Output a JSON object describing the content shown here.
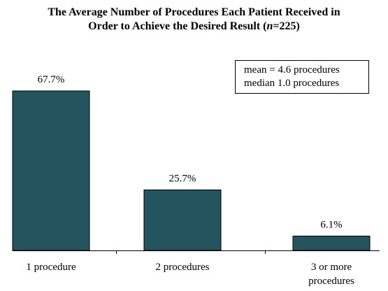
{
  "title_parts": [
    {
      "text": "The Average Number of Procedures Each Patient Received in",
      "italic": false
    },
    {
      "text": "Order to Achieve the Desired Result (",
      "italic": false
    },
    {
      "text": "n",
      "italic": true
    },
    {
      "text": "=225)",
      "italic": false
    }
  ],
  "stats": {
    "mean": "mean = 4.6 procedures",
    "median": "median  1.0 procedures"
  },
  "colors": {
    "bar": "#24555f",
    "bar_stroke": "#000000",
    "axis": "#000000"
  },
  "chart_data": {
    "type": "bar",
    "title": "The Average Number of Procedures Each Patient Received in Order to Achieve the Desired Result (n=225)",
    "categories": [
      [
        "1 procedure"
      ],
      [
        "2 procedures"
      ],
      [
        "3 or more",
        "procedures"
      ]
    ],
    "values": [
      67.7,
      25.7,
      6.1
    ],
    "value_labels": [
      "67.7%",
      "25.7%",
      "6.1%"
    ],
    "unit": "%",
    "xlabel": "",
    "ylabel": "",
    "ylim": [
      0,
      67.7
    ],
    "grid": false,
    "legend": "none"
  }
}
